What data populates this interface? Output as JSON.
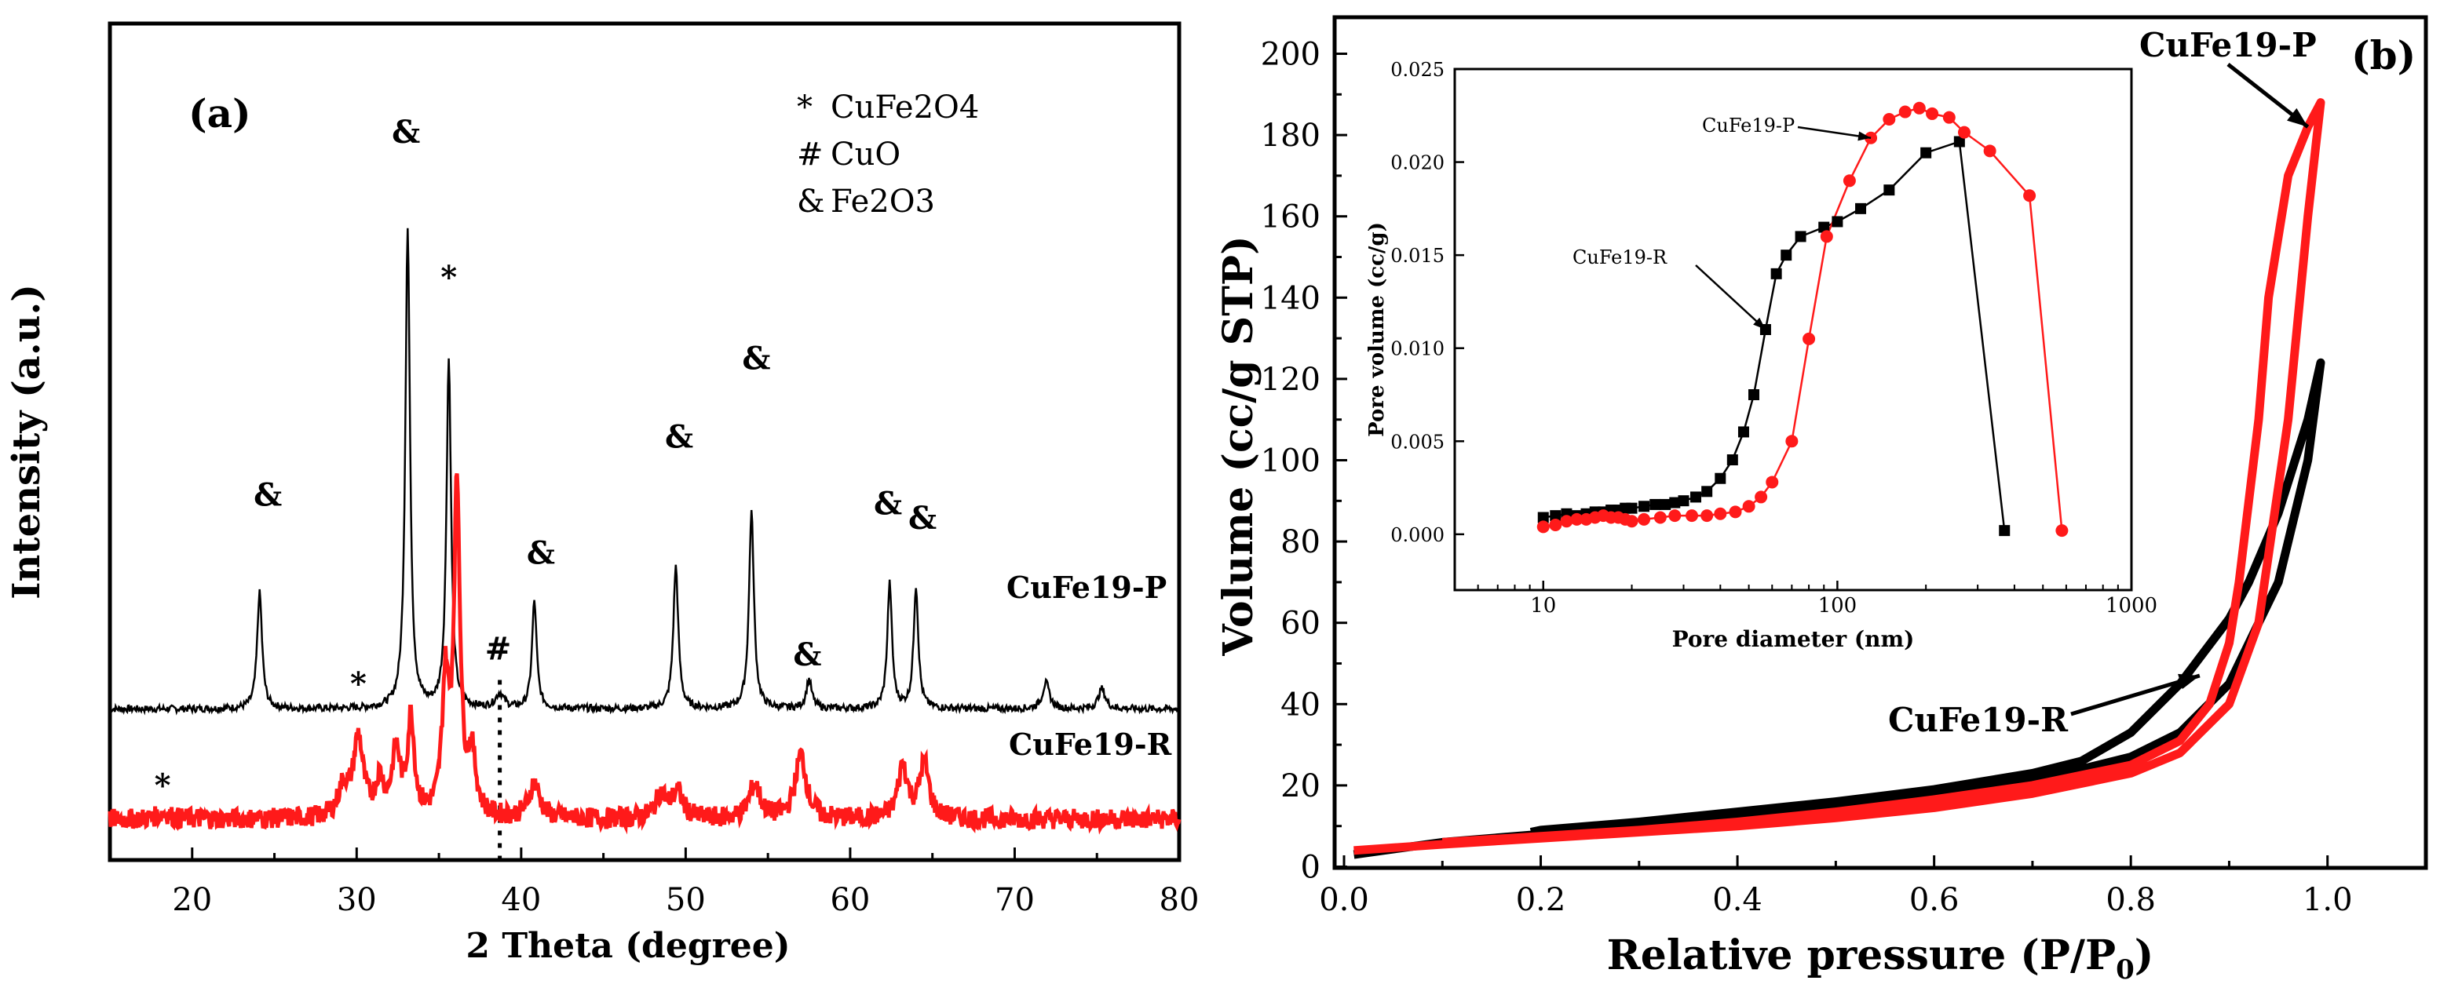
{
  "colors": {
    "black": "#000000",
    "red": "#ff1a1a",
    "background": "#ffffff"
  },
  "chart_data": [
    {
      "id": "xrd",
      "type": "line",
      "panel_label": "(a)",
      "xlabel": "2 Theta (degree)",
      "ylabel": "Intensity (a.u.)",
      "xlim": [
        15,
        80
      ],
      "x_ticks": [
        20,
        30,
        40,
        50,
        60,
        70,
        80
      ],
      "x_tick_labels": [
        "20",
        "30",
        "40",
        "50",
        "60",
        "70",
        "80"
      ],
      "y_ticks_shown": false,
      "legend": [
        {
          "marker": "*",
          "label": "CuFe2O4"
        },
        {
          "marker": "#",
          "label": "CuO"
        },
        {
          "marker": "&",
          "label": "Fe2O3"
        }
      ],
      "series": [
        {
          "name": "CuFe19-P",
          "color": "#000000",
          "baseline": 0.45,
          "noise": 0.012,
          "peaks": [
            {
              "x": 24.1,
              "h": 0.4,
              "w": 0.18
            },
            {
              "x": 33.1,
              "h": 1.65,
              "w": 0.17
            },
            {
              "x": 35.6,
              "h": 1.2,
              "w": 0.17
            },
            {
              "x": 38.7,
              "h": 0.05,
              "w": 0.3
            },
            {
              "x": 40.8,
              "h": 0.37,
              "w": 0.17
            },
            {
              "x": 49.4,
              "h": 0.49,
              "w": 0.18
            },
            {
              "x": 54.0,
              "h": 0.68,
              "w": 0.18
            },
            {
              "x": 57.5,
              "h": 0.1,
              "w": 0.2
            },
            {
              "x": 62.4,
              "h": 0.43,
              "w": 0.17
            },
            {
              "x": 64.0,
              "h": 0.42,
              "w": 0.17
            },
            {
              "x": 71.9,
              "h": 0.09,
              "w": 0.25
            },
            {
              "x": 75.3,
              "h": 0.07,
              "w": 0.25
            }
          ]
        },
        {
          "name": "CuFe19-R",
          "color": "#ff1a1a",
          "baseline": 0.07,
          "noise": 0.035,
          "peaks": [
            {
              "x": 18.3,
              "h": 0.02,
              "w": 0.5
            },
            {
              "x": 29.2,
              "h": 0.1,
              "w": 0.4
            },
            {
              "x": 30.1,
              "h": 0.27,
              "w": 0.35
            },
            {
              "x": 31.4,
              "h": 0.12,
              "w": 0.3
            },
            {
              "x": 32.4,
              "h": 0.22,
              "w": 0.3
            },
            {
              "x": 33.3,
              "h": 0.33,
              "w": 0.25
            },
            {
              "x": 35.4,
              "h": 0.45,
              "w": 0.25
            },
            {
              "x": 36.1,
              "h": 1.12,
              "w": 0.22
            },
            {
              "x": 37.0,
              "h": 0.2,
              "w": 0.3
            },
            {
              "x": 40.8,
              "h": 0.12,
              "w": 0.4
            },
            {
              "x": 48.5,
              "h": 0.08,
              "w": 0.4
            },
            {
              "x": 49.5,
              "h": 0.09,
              "w": 0.4
            },
            {
              "x": 54.2,
              "h": 0.12,
              "w": 0.4
            },
            {
              "x": 57.0,
              "h": 0.22,
              "w": 0.4
            },
            {
              "x": 63.2,
              "h": 0.18,
              "w": 0.35
            },
            {
              "x": 64.5,
              "h": 0.19,
              "w": 0.35
            }
          ]
        }
      ],
      "series_labels": [
        "CuFe19-P",
        "CuFe19-R"
      ],
      "peak_annotations": [
        {
          "symbol": "&",
          "x": 24.6,
          "y": 1.15
        },
        {
          "symbol": "&",
          "x": 33.0,
          "y": 2.4
        },
        {
          "symbol": "*",
          "x": 35.6,
          "y": 1.9
        },
        {
          "symbol": "#",
          "x": 38.6,
          "y": 0.62
        },
        {
          "symbol": "&",
          "x": 41.2,
          "y": 0.95
        },
        {
          "symbol": "&",
          "x": 49.6,
          "y": 1.35
        },
        {
          "symbol": "&",
          "x": 54.3,
          "y": 1.62
        },
        {
          "symbol": "&",
          "x": 57.4,
          "y": 0.6
        },
        {
          "symbol": "&",
          "x": 62.3,
          "y": 1.12
        },
        {
          "symbol": "&",
          "x": 64.4,
          "y": 1.07
        },
        {
          "symbol": "*",
          "x": 30.1,
          "y": 0.5
        },
        {
          "symbol": "*",
          "x": 18.2,
          "y": 0.15
        }
      ],
      "reference_line_x": 38.7
    },
    {
      "id": "isotherm",
      "type": "line",
      "panel_label": "(b)",
      "xlabel": "Relative pressure (P/P",
      "xlabel_sub": "0",
      "xlabel_close": ")",
      "ylabel": "Volume (cc/g STP)",
      "xlim": [
        0.0,
        1.1
      ],
      "ylim": [
        0,
        210
      ],
      "x_ticks": [
        0.0,
        0.2,
        0.4,
        0.6,
        0.8,
        1.0
      ],
      "x_tick_labels": [
        "0.0",
        "0.2",
        "0.4",
        "0.6",
        "0.8",
        "1.0"
      ],
      "y_ticks": [
        0,
        20,
        40,
        60,
        80,
        100,
        120,
        140,
        160,
        180,
        200
      ],
      "y_tick_labels": [
        "0",
        "20",
        "40",
        "60",
        "80",
        "100",
        "120",
        "140",
        "160",
        "180",
        "200"
      ],
      "series": [
        {
          "name": "CuFe19-R",
          "color": "#000000",
          "adsorption": [
            [
              0.01,
              3
            ],
            [
              0.1,
              6
            ],
            [
              0.2,
              8
            ],
            [
              0.3,
              10
            ],
            [
              0.4,
              12
            ],
            [
              0.5,
              14.5
            ],
            [
              0.6,
              17
            ],
            [
              0.7,
              21
            ],
            [
              0.8,
              27
            ],
            [
              0.85,
              33
            ],
            [
              0.9,
              45
            ],
            [
              0.95,
              70
            ],
            [
              0.98,
              100
            ],
            [
              0.993,
              124
            ]
          ],
          "desorption": [
            [
              0.993,
              124
            ],
            [
              0.98,
              110
            ],
            [
              0.95,
              87
            ],
            [
              0.92,
              70
            ],
            [
              0.9,
              61
            ],
            [
              0.85,
              45
            ],
            [
              0.8,
              33
            ],
            [
              0.75,
              26
            ],
            [
              0.7,
              23
            ],
            [
              0.6,
              19
            ],
            [
              0.5,
              16
            ],
            [
              0.4,
              13.5
            ],
            [
              0.3,
              11
            ],
            [
              0.2,
              9
            ],
            [
              0.19,
              8.5
            ]
          ]
        },
        {
          "name": "CuFe19-P",
          "color": "#ff1a1a",
          "adsorption": [
            [
              0.01,
              4
            ],
            [
              0.1,
              5.5
            ],
            [
              0.2,
              7
            ],
            [
              0.3,
              8.5
            ],
            [
              0.4,
              10
            ],
            [
              0.5,
              12
            ],
            [
              0.6,
              14.5
            ],
            [
              0.7,
              18
            ],
            [
              0.8,
              23
            ],
            [
              0.85,
              28
            ],
            [
              0.9,
              40
            ],
            [
              0.93,
              60
            ],
            [
              0.96,
              110
            ],
            [
              0.98,
              160
            ],
            [
              0.993,
              188
            ]
          ],
          "desorption": [
            [
              0.993,
              188
            ],
            [
              0.98,
              182
            ],
            [
              0.96,
              170
            ],
            [
              0.94,
              140
            ],
            [
              0.93,
              110
            ],
            [
              0.91,
              70
            ],
            [
              0.9,
              55
            ],
            [
              0.88,
              40
            ],
            [
              0.85,
              31
            ],
            [
              0.8,
              25
            ],
            [
              0.7,
              20
            ],
            [
              0.6,
              16.5
            ],
            [
              0.5,
              13.5
            ],
            [
              0.4,
              11
            ],
            [
              0.3,
              9
            ],
            [
              0.2,
              7.5
            ],
            [
              0.1,
              6
            ]
          ]
        }
      ],
      "annotations": [
        {
          "text": "CuFe19-P",
          "points_to": [
            0.98,
            182
          ]
        },
        {
          "text": "CuFe19-R",
          "points_to": [
            0.87,
            47
          ]
        }
      ],
      "inset": {
        "type": "line",
        "xlabel": "Pore diameter (nm)",
        "ylabel": "Pore volume (cc/g)",
        "x_scale": "log",
        "xlim": [
          5,
          1000
        ],
        "ylim": [
          -0.003,
          0.025
        ],
        "x_ticks": [
          10,
          100,
          1000
        ],
        "x_tick_labels": [
          "10",
          "100",
          "1000"
        ],
        "y_ticks": [
          0.0,
          0.005,
          0.01,
          0.015,
          0.02,
          0.025
        ],
        "y_tick_labels": [
          "0.000",
          "0.005",
          "0.010",
          "0.015",
          "0.020",
          "0.025"
        ],
        "series": [
          {
            "name": "CuFe19-R",
            "color": "#000000",
            "marker": "square",
            "points": [
              [
                10,
                0.0009
              ],
              [
                11,
                0.001
              ],
              [
                12,
                0.0011
              ],
              [
                13,
                0.001
              ],
              [
                14,
                0.0011
              ],
              [
                15,
                0.0012
              ],
              [
                16,
                0.0012
              ],
              [
                17,
                0.0013
              ],
              [
                18,
                0.0013
              ],
              [
                19,
                0.0014
              ],
              [
                20,
                0.0014
              ],
              [
                22,
                0.0015
              ],
              [
                24,
                0.0016
              ],
              [
                26,
                0.0016
              ],
              [
                28,
                0.0017
              ],
              [
                30,
                0.0018
              ],
              [
                33,
                0.002
              ],
              [
                36,
                0.0023
              ],
              [
                40,
                0.003
              ],
              [
                44,
                0.004
              ],
              [
                48,
                0.0055
              ],
              [
                52,
                0.0075
              ],
              [
                57,
                0.011
              ],
              [
                62,
                0.014
              ],
              [
                67,
                0.015
              ],
              [
                75,
                0.016
              ],
              [
                90,
                0.0165
              ],
              [
                100,
                0.0168
              ],
              [
                120,
                0.0175
              ],
              [
                150,
                0.0185
              ],
              [
                200,
                0.0205
              ],
              [
                260,
                0.0211
              ],
              [
                370,
                0.0002
              ]
            ]
          },
          {
            "name": "CuFe19-P",
            "color": "#ff1a1a",
            "marker": "circle",
            "points": [
              [
                10,
                0.0004
              ],
              [
                11,
                0.0005
              ],
              [
                12,
                0.0007
              ],
              [
                13,
                0.0008
              ],
              [
                14,
                0.0008
              ],
              [
                15,
                0.0009
              ],
              [
                16,
                0.001
              ],
              [
                17,
                0.0009
              ],
              [
                18,
                0.0009
              ],
              [
                19,
                0.0008
              ],
              [
                20,
                0.0007
              ],
              [
                22,
                0.0008
              ],
              [
                25,
                0.0009
              ],
              [
                28,
                0.001
              ],
              [
                32,
                0.001
              ],
              [
                36,
                0.001
              ],
              [
                40,
                0.0011
              ],
              [
                45,
                0.0012
              ],
              [
                50,
                0.0015
              ],
              [
                55,
                0.002
              ],
              [
                60,
                0.0028
              ],
              [
                70,
                0.005
              ],
              [
                80,
                0.0105
              ],
              [
                92,
                0.016
              ],
              [
                110,
                0.019
              ],
              [
                130,
                0.0213
              ],
              [
                150,
                0.0223
              ],
              [
                170,
                0.0227
              ],
              [
                190,
                0.0229
              ],
              [
                210,
                0.0226
              ],
              [
                240,
                0.0224
              ],
              [
                270,
                0.0216
              ],
              [
                330,
                0.0206
              ],
              [
                450,
                0.0182
              ],
              [
                580,
                0.0002
              ]
            ]
          }
        ],
        "annotations": [
          {
            "text": "CuFe19-P",
            "points_to": [
              130,
              0.0213
            ]
          },
          {
            "text": "CuFe19-R",
            "points_to": [
              57,
              0.011
            ]
          }
        ]
      }
    }
  ]
}
